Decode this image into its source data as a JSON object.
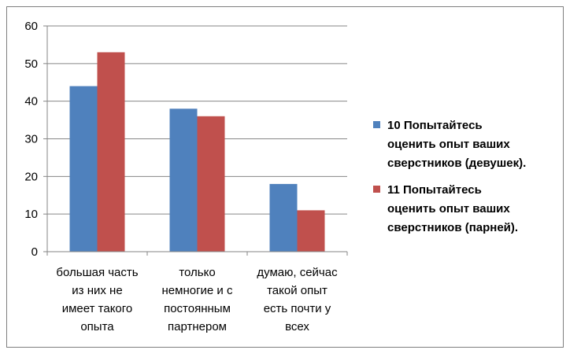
{
  "chart_data": {
    "type": "bar",
    "categories": [
      [
        "большая часть",
        "из них не",
        "имеет такого",
        "опыта"
      ],
      [
        "только",
        "немногие и с",
        "постоянным",
        "партнером"
      ],
      [
        "думаю, сейчас",
        "такой опыт",
        "есть почти у",
        "всех"
      ]
    ],
    "series": [
      {
        "name": "10 Попытайтесь оценить опыт ваших сверстников (девушек).",
        "color": "#4f81bd",
        "values": [
          44,
          38,
          18
        ]
      },
      {
        "name": "11 Попытайтесь оценить опыт ваших сверстников (парней).",
        "color": "#c0504d",
        "values": [
          53,
          36,
          11
        ]
      }
    ],
    "ylim": [
      0,
      60
    ],
    "yticks": [
      0,
      10,
      20,
      30,
      40,
      50,
      60
    ],
    "grid": true,
    "legend_position": "right"
  },
  "legend": {
    "items": [
      {
        "lines": [
          "10 Попытайтесь",
          "оценить опыт ваших",
          "сверстников (девушек)."
        ],
        "color": "#4f81bd"
      },
      {
        "lines": [
          "11 Попытайтесь",
          "оценить опыт ваших",
          "сверстников (парней)."
        ],
        "color": "#c0504d"
      }
    ]
  }
}
